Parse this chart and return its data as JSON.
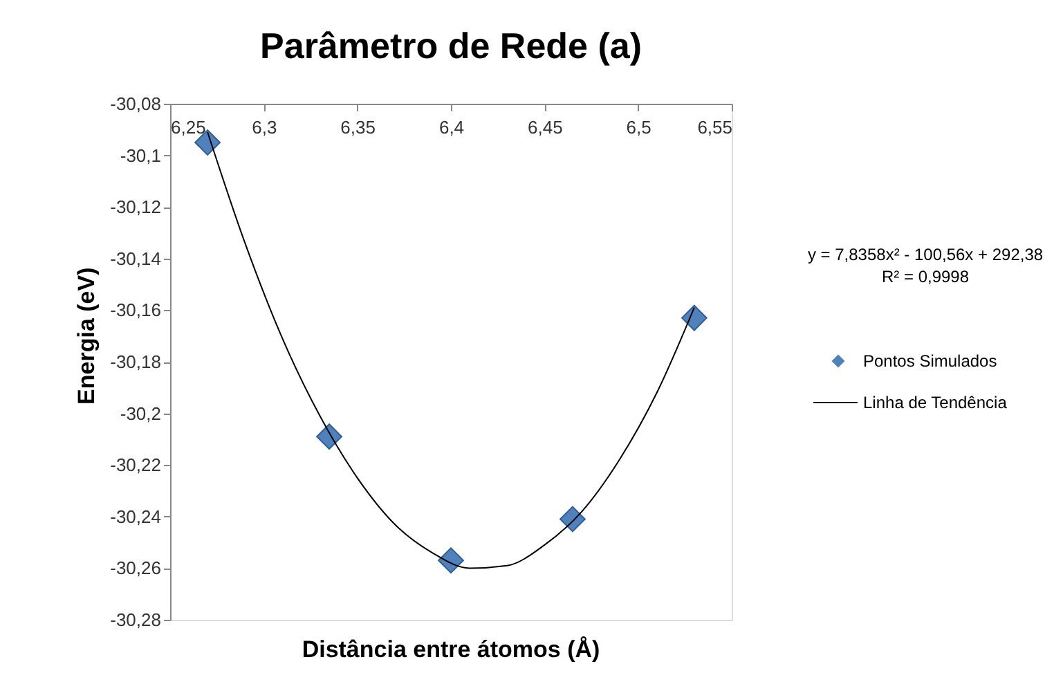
{
  "chart_data": {
    "type": "scatter",
    "title": "Parâmetro de Rede (a)",
    "xlabel": "Distância entre átomos (Å)",
    "ylabel": "Energia (eV)",
    "xlim": [
      6.25,
      6.55
    ],
    "xticks": [
      {
        "value": 6.25,
        "label": "6,25"
      },
      {
        "value": 6.3,
        "label": "6,3"
      },
      {
        "value": 6.35,
        "label": "6,35"
      },
      {
        "value": 6.4,
        "label": "6,4"
      },
      {
        "value": 6.45,
        "label": "6,45"
      },
      {
        "value": 6.5,
        "label": "6,5"
      },
      {
        "value": 6.55,
        "label": "6,55"
      }
    ],
    "ylim": [
      -30.28,
      -30.08
    ],
    "yticks": [
      {
        "value": -30.08,
        "label": "-30,08"
      },
      {
        "value": -30.1,
        "label": "-30,1"
      },
      {
        "value": -30.12,
        "label": "-30,12"
      },
      {
        "value": -30.14,
        "label": "-30,14"
      },
      {
        "value": -30.16,
        "label": "-30,16"
      },
      {
        "value": -30.18,
        "label": "-30,18"
      },
      {
        "value": -30.2,
        "label": "-30,2"
      },
      {
        "value": -30.22,
        "label": "-30,22"
      },
      {
        "value": -30.24,
        "label": "-30,24"
      },
      {
        "value": -30.26,
        "label": "-30,26"
      },
      {
        "value": -30.28,
        "label": "-30,28"
      }
    ],
    "grid": false,
    "legend": "right",
    "annotations": [
      "y = 7,8358x² - 100,56x + 292,38",
      "R² = 0,9998"
    ],
    "series": [
      {
        "name": "Pontos Simulados",
        "type": "scatter",
        "marker": "diamond",
        "color": "#4f81bd",
        "x": [
          6.27,
          6.335,
          6.4,
          6.465,
          6.53
        ],
        "values": [
          -30.095,
          -30.209,
          -30.257,
          -30.241,
          -30.163
        ]
      },
      {
        "name": "Linha de Tendência",
        "type": "line",
        "marker": "none",
        "line_style": "solid",
        "color": "#000000",
        "x": [
          6.27,
          6.29,
          6.31,
          6.33,
          6.35,
          6.37,
          6.39,
          6.41,
          6.43,
          6.45,
          6.47,
          6.49,
          6.51,
          6.53
        ],
        "values": [
          -30.091,
          -30.134,
          -30.171,
          -30.201,
          -30.225,
          -30.243,
          -30.254,
          -30.26,
          -30.259,
          -30.251,
          -30.238,
          -30.218,
          -30.192,
          -30.159
        ]
      }
    ]
  }
}
